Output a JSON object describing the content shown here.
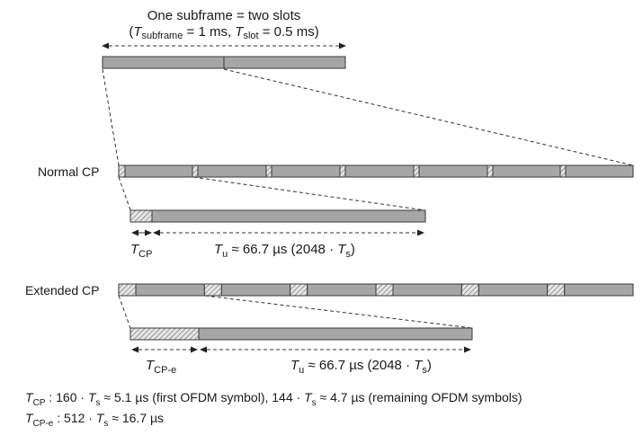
{
  "subframe": {
    "title": "One subframe = two slots",
    "subtitle_open": "(",
    "t_sym": "T",
    "t_subframe_sub": "subframe",
    "t_subframe_val": " = 1 ms, ",
    "t_slot_sub": "slot",
    "t_slot_val": " = 0.5 ms)"
  },
  "normal_cp": {
    "label": "Normal CP",
    "tcp_t": "T",
    "tcp_sub": "CP",
    "tu_t": "T",
    "tu_sub": "u",
    "tu_val": " ≈ 66.7 µs (2048 · ",
    "tu_ts": "T",
    "tu_ts_sub": "s",
    "tu_close": ")"
  },
  "extended_cp": {
    "label": "Extended CP",
    "tcpe_t": "T",
    "tcpe_sub": "CP-e",
    "tu_t": "T",
    "tu_sub": "u",
    "tu_val": " ≈ 66.7 µs (2048 · ",
    "tu_ts": "T",
    "tu_ts_sub": "s",
    "tu_close": ")"
  },
  "footnotes": {
    "line1_t": "T",
    "line1_sub": "CP",
    "line1_a": " : 160 · ",
    "line1_ts1": "T",
    "line1_ts1_sub": "s",
    "line1_b": " ≈ 5.1 µs (first OFDM symbol), 144 · ",
    "line1_ts2": "T",
    "line1_ts2_sub": "s",
    "line1_c": " ≈ 4.7 µs (remaining OFDM symbols)",
    "line2_t": "T",
    "line2_sub": "CP-e",
    "line2_a": " : 512 · ",
    "line2_ts": "T",
    "line2_ts_sub": "s",
    "line2_b": " ≈ 16.7 µs"
  },
  "colors": {
    "bar_fill": "#a6a6a6",
    "outline": "#3a3a3a"
  }
}
